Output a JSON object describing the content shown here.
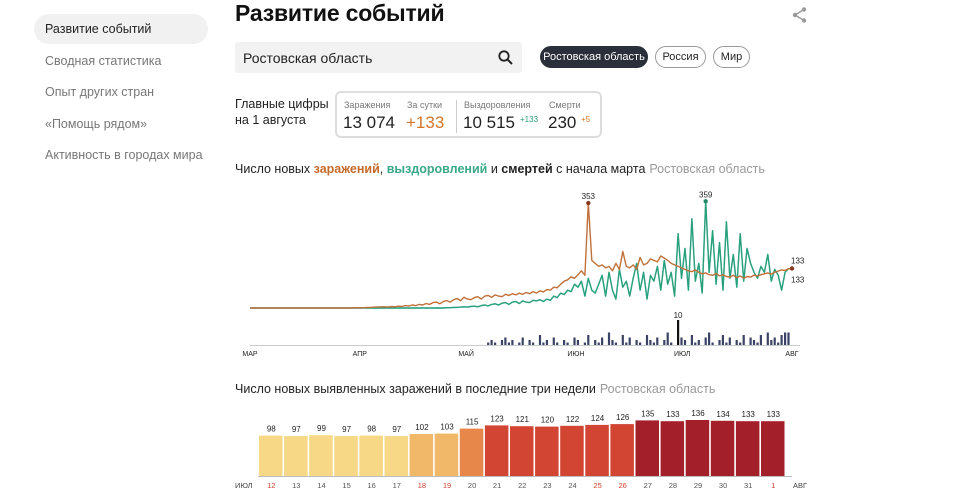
{
  "sidebar": {
    "items": [
      {
        "label": "Развитие событий",
        "active": true
      },
      {
        "label": "Сводная статистика",
        "active": false
      },
      {
        "label": "Опыт других стран",
        "active": false
      },
      {
        "label": "«Помощь рядом»",
        "active": false
      },
      {
        "label": "Активность в городах мира",
        "active": false
      }
    ]
  },
  "header": {
    "title": "Развитие событий",
    "share_icon": "share-icon"
  },
  "search": {
    "value": "Ростовская область",
    "icon": "search-icon"
  },
  "regions": [
    {
      "label": "Ростовская область",
      "active": true
    },
    {
      "label": "Россия",
      "active": false
    },
    {
      "label": "Мир",
      "active": false
    }
  ],
  "summary": {
    "label_line1": "Главные цифры",
    "label_line2": "на 1 августа",
    "infections_label": "Заражения",
    "infections_value": "13 074",
    "per_day_label": "За сутки",
    "per_day_value": "+133",
    "recovered_label": "Выздоровления",
    "recovered_value": "10 515",
    "recovered_delta": "+133",
    "deaths_label": "Смерти",
    "deaths_value": "230",
    "deaths_delta": "+5"
  },
  "chart1": {
    "title_prefix": "Число новых ",
    "title_infections": "заражений",
    "title_sep": ", ",
    "title_recoveries": "выздоровлений",
    "title_and": " и ",
    "title_deaths": "смертей",
    "title_suffix": " с начала марта",
    "region": "Ростовская область",
    "labels": {
      "infections_peak": "353",
      "recoveries_peak": "359",
      "last_a": "133",
      "last_b": "133",
      "deaths_peak": "10",
      "deaths_last": "5"
    },
    "months": [
      "МАР",
      "АПР",
      "МАЙ",
      "ИЮН",
      "ИЮЛ",
      "АВГ"
    ]
  },
  "chart2": {
    "title": "Число новых выявленных заражений в последние три недели",
    "region": "Ростовская область"
  },
  "chart_data": [
    {
      "type": "line",
      "title": "Число новых заражений, выздоровлений и смертей с начала марта",
      "x_range": [
        "2020-03-01",
        "2020-08-01"
      ],
      "series": [
        {
          "name": "заражений",
          "color": "#c0703a",
          "values": [
            0,
            0,
            0,
            0,
            0,
            0,
            0,
            0,
            0,
            0,
            0,
            0,
            0,
            0,
            0,
            0,
            0,
            0,
            0,
            0,
            0,
            0,
            0,
            0,
            0,
            0,
            0,
            0,
            0,
            0,
            1,
            0,
            1,
            1,
            2,
            2,
            3,
            3,
            4,
            4,
            3,
            5,
            4,
            6,
            5,
            8,
            7,
            10,
            8,
            12,
            10,
            15,
            12,
            18,
            20,
            14,
            22,
            25,
            20,
            28,
            32,
            25,
            36,
            30,
            28,
            35,
            38,
            30,
            40,
            42,
            36,
            44,
            40,
            38,
            46,
            42,
            48,
            44,
            50,
            46,
            52,
            48,
            55,
            50,
            58,
            54,
            62,
            60,
            70,
            68,
            80,
            90,
            95,
            105,
            100,
            112,
            125,
            110,
            353,
            160,
            150,
            140,
            145,
            135,
            140,
            125,
            150,
            130,
            190,
            140,
            135,
            145,
            130,
            170,
            145,
            150,
            165,
            160,
            155,
            175,
            168,
            160,
            150,
            145,
            140,
            135,
            130,
            125,
            122,
            128,
            120,
            115,
            118,
            112,
            110,
            116,
            108,
            112,
            106,
            104,
            110,
            102,
            108,
            100,
            106,
            104,
            110,
            108,
            112,
            115,
            118,
            114,
            120,
            124,
            128,
            126,
            132,
            133
          ]
        },
        {
          "name": "выздоровлений",
          "color": "#29a07c",
          "values": [
            0,
            0,
            0,
            0,
            0,
            0,
            0,
            0,
            0,
            0,
            0,
            0,
            0,
            0,
            0,
            0,
            0,
            0,
            0,
            0,
            0,
            0,
            0,
            0,
            0,
            0,
            0,
            0,
            0,
            0,
            0,
            0,
            0,
            0,
            0,
            0,
            0,
            0,
            0,
            0,
            0,
            0,
            0,
            0,
            0,
            0,
            0,
            0,
            0,
            0,
            0,
            0,
            0,
            0,
            0,
            0,
            0,
            1,
            1,
            2,
            2,
            3,
            4,
            3,
            5,
            6,
            4,
            8,
            10,
            7,
            12,
            14,
            10,
            16,
            18,
            12,
            20,
            22,
            15,
            24,
            20,
            18,
            26,
            24,
            28,
            22,
            30,
            26,
            40,
            35,
            50,
            45,
            60,
            55,
            80,
            70,
            90,
            40,
            100,
            60,
            50,
            80,
            110,
            40,
            120,
            60,
            30,
            130,
            70,
            90,
            40,
            100,
            150,
            60,
            120,
            30,
            110,
            90,
            140,
            60,
            160,
            80,
            120,
            40,
            250,
            100,
            200,
            60,
            300,
            90,
            150,
            50,
            359,
            120,
            260,
            80,
            220,
            60,
            290,
            100,
            180,
            70,
            250,
            90,
            200,
            150,
            120,
            100,
            140,
            120,
            180,
            90,
            130,
            110,
            60,
            120,
            133
          ]
        },
        {
          "name": "смертей",
          "color": "#2f3652",
          "values": [
            0,
            0,
            0,
            0,
            0,
            0,
            0,
            0,
            0,
            0,
            0,
            0,
            0,
            0,
            0,
            0,
            0,
            0,
            0,
            0,
            0,
            0,
            0,
            0,
            0,
            0,
            0,
            0,
            0,
            0,
            0,
            0,
            0,
            0,
            0,
            0,
            0,
            0,
            0,
            0,
            0,
            0,
            0,
            0,
            0,
            0,
            0,
            0,
            0,
            0,
            0,
            0,
            0,
            0,
            0,
            0,
            0,
            0,
            0,
            0,
            0,
            0,
            0,
            0,
            0,
            0,
            0,
            0,
            0,
            1,
            2,
            1,
            0,
            2,
            3,
            1,
            2,
            0,
            1,
            3,
            0,
            2,
            1,
            0,
            4,
            1,
            2,
            0,
            3,
            1,
            0,
            2,
            1,
            0,
            3,
            2,
            0,
            1,
            4,
            0,
            2,
            1,
            3,
            0,
            5,
            2,
            1,
            0,
            4,
            1,
            3,
            0,
            2,
            1,
            0,
            4,
            2,
            1,
            3,
            0,
            2,
            5,
            1,
            0,
            10,
            3,
            2,
            0,
            4,
            1,
            2,
            0,
            3,
            5,
            1,
            0,
            2,
            4,
            1,
            3,
            0,
            2,
            1,
            4,
            0,
            3,
            2,
            1,
            4,
            0,
            5,
            2,
            3,
            1,
            4,
            5,
            5
          ]
        }
      ]
    },
    {
      "type": "bar",
      "title": "Число новых выявленных заражений в последние три недели",
      "categories": [
        "12",
        "13",
        "14",
        "15",
        "16",
        "17",
        "18",
        "19",
        "20",
        "21",
        "22",
        "23",
        "24",
        "25",
        "26",
        "27",
        "28",
        "29",
        "30",
        "31",
        "1"
      ],
      "values": [
        98,
        97,
        99,
        97,
        98,
        97,
        102,
        103,
        115,
        123,
        121,
        120,
        122,
        124,
        126,
        135,
        133,
        136,
        134,
        133,
        133
      ],
      "weekend": [
        true,
        false,
        false,
        false,
        false,
        false,
        true,
        true,
        false,
        false,
        false,
        false,
        false,
        true,
        true,
        false,
        false,
        false,
        false,
        false,
        true
      ],
      "month_start_label": "ИЮЛ",
      "month_end_label": "АВГ",
      "colors": {
        "low": "#f6d887",
        "mid": "#e8874a",
        "high": "#d24533",
        "top": "#a3202a"
      }
    }
  ]
}
